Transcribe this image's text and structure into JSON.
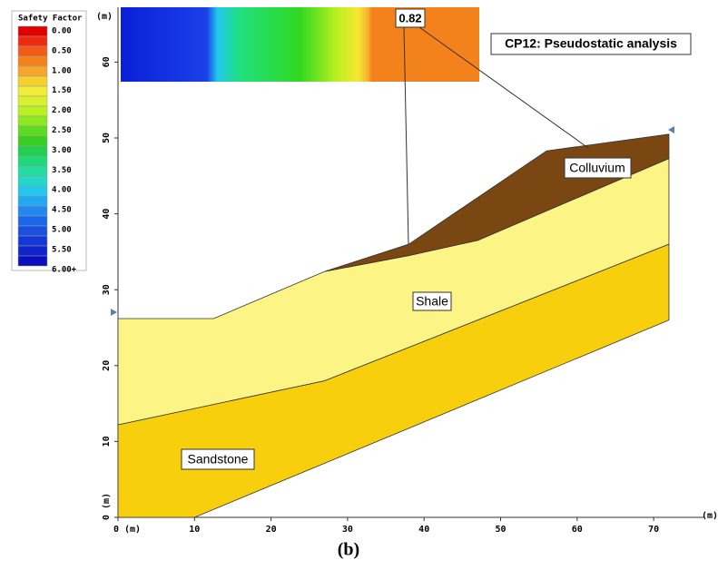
{
  "legend": {
    "title": "Safety Factor",
    "labels": [
      "0.00",
      "0.50",
      "1.00",
      "1.50",
      "2.00",
      "2.50",
      "3.00",
      "3.50",
      "4.00",
      "4.50",
      "5.00",
      "5.50",
      "6.00+"
    ]
  },
  "annotation": {
    "value_label": "0.82",
    "title": "CP12: Pseudostatic analysis"
  },
  "layers": {
    "colluvium": "Colluvium",
    "shale": "Shale",
    "sandstone": "Sandstone"
  },
  "axes": {
    "y_unit": "(m)",
    "x_unit": "(m)",
    "x_tick_labels": [
      "0 (m)",
      "10",
      "20",
      "30",
      "40",
      "50",
      "60",
      "70"
    ],
    "y_tick_labels": [
      "0 (m)",
      "10",
      "20",
      "30",
      "40",
      "50",
      "60"
    ]
  },
  "caption": "(b)"
}
